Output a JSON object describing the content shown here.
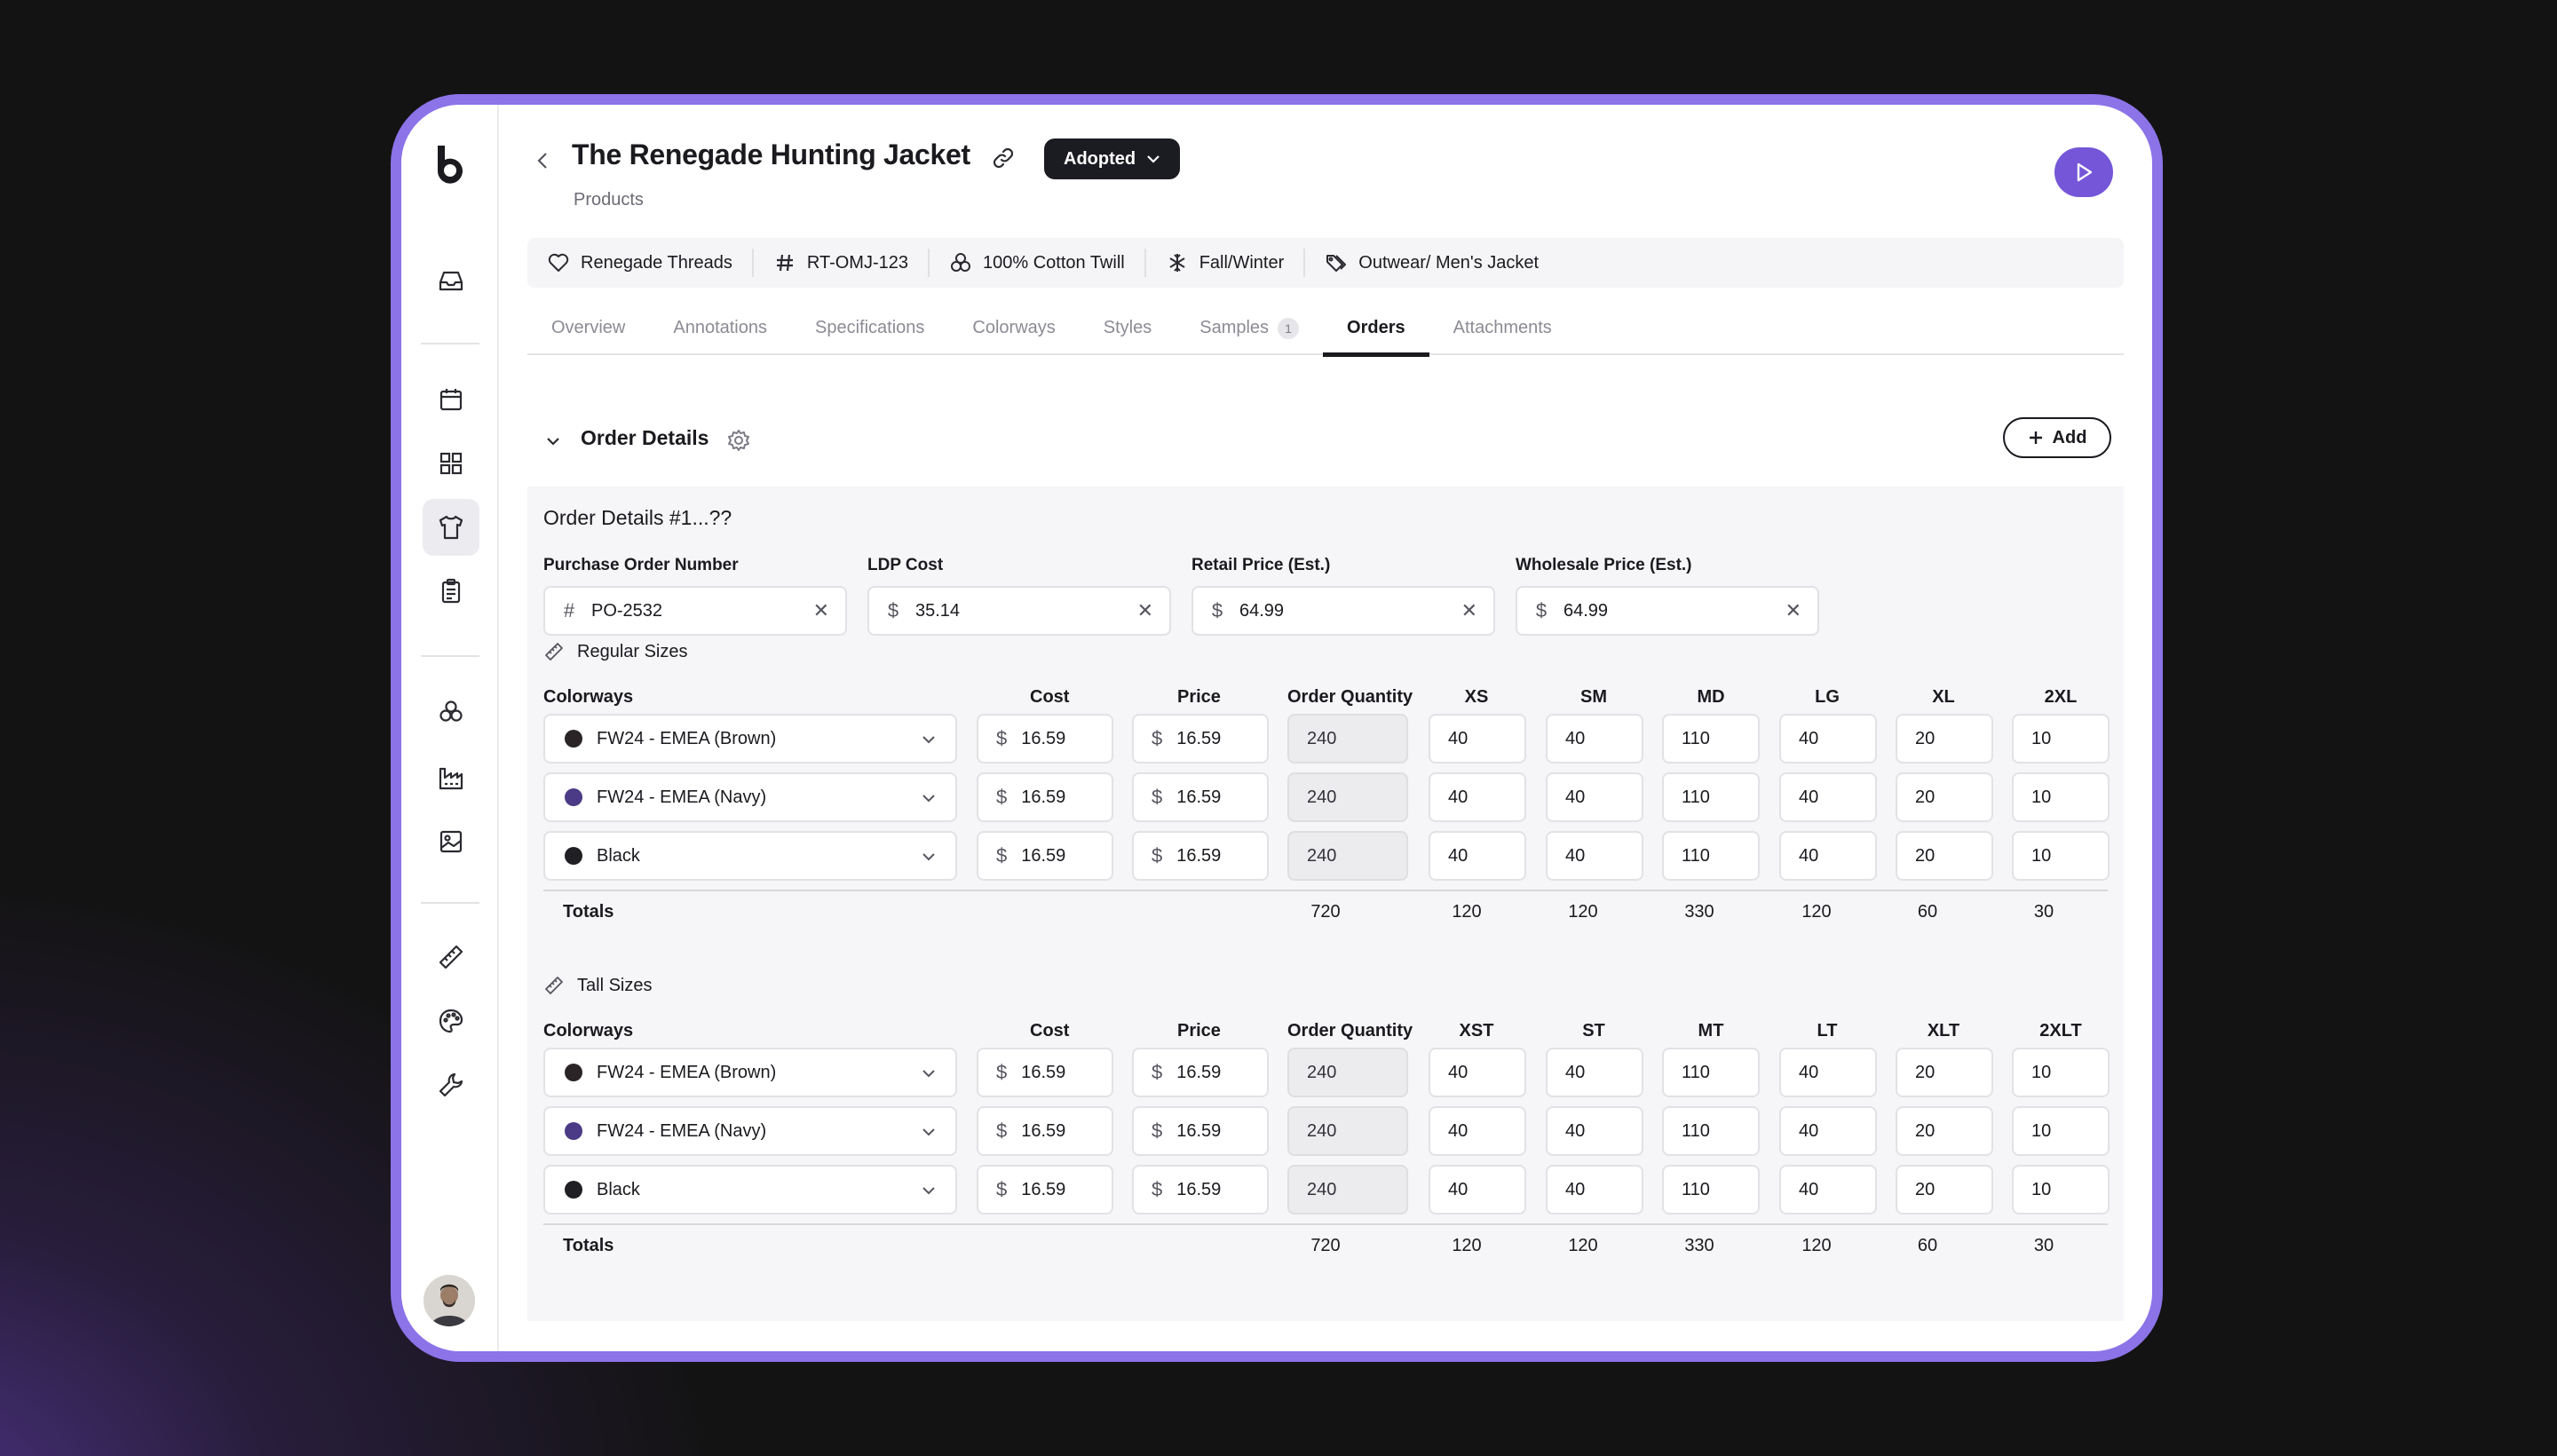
{
  "app": {
    "title": "The Renegade Hunting Jacket",
    "subtitle": "Products",
    "status": "Adopted"
  },
  "colors": {
    "accent": "#7556d8",
    "frame": "#8c73e8",
    "navy": "#4b3b86",
    "brown": "#2a2426",
    "black": "#1f1f24"
  },
  "sidebar": {
    "icons": [
      "inbox-icon",
      "calendar-icon",
      "grid-icon",
      "shirt-icon",
      "clipboard-icon",
      "cubes-icon",
      "factory-icon",
      "image-icon",
      "ruler-icon",
      "palette-icon",
      "wrench-icon"
    ],
    "active": "shirt-icon"
  },
  "chips": [
    {
      "icon": "heart-icon",
      "label": "Renegade Threads"
    },
    {
      "icon": "hash-icon",
      "label": "RT-OMJ-123"
    },
    {
      "icon": "fabric-icon",
      "label": "100% Cotton Twill"
    },
    {
      "icon": "season-icon",
      "label": "Fall/Winter"
    },
    {
      "icon": "tag-icon",
      "label": "Outwear/ Men's Jacket"
    }
  ],
  "tabs": [
    {
      "label": "Overview"
    },
    {
      "label": "Annotations"
    },
    {
      "label": "Specifications"
    },
    {
      "label": "Colorways"
    },
    {
      "label": "Styles"
    },
    {
      "label": "Samples",
      "badge": "1"
    },
    {
      "label": "Orders",
      "active": true
    },
    {
      "label": "Attachments"
    }
  ],
  "section": {
    "title": "Order Details",
    "add_label": "Add"
  },
  "order": {
    "title": "Order Details #1...??",
    "fields": [
      {
        "label": "Purchase Order Number",
        "prefix": "#",
        "value": "PO-2532"
      },
      {
        "label": "LDP Cost",
        "prefix": "$",
        "value": "35.14"
      },
      {
        "label": "Retail Price (Est.)",
        "prefix": "$",
        "value": "64.99"
      },
      {
        "label": "Wholesale Price (Est.)",
        "prefix": "$",
        "value": "64.99"
      }
    ],
    "groups": [
      {
        "label": "Regular Sizes",
        "headers": {
          "colorways": "Colorways",
          "cost": "Cost",
          "price": "Price",
          "qty": "Order Quantity",
          "sizes": [
            "XS",
            "SM",
            "MD",
            "LG",
            "XL",
            "2XL"
          ]
        },
        "rows": [
          {
            "colorway": "FW24 - EMEA (Brown)",
            "swatch": "#2a2426",
            "cost": "16.59",
            "price": "16.59",
            "qty": "240",
            "sizes": [
              "40",
              "40",
              "110",
              "40",
              "20",
              "10"
            ]
          },
          {
            "colorway": "FW24 - EMEA (Navy)",
            "swatch": "#4b3b86",
            "cost": "16.59",
            "price": "16.59",
            "qty": "240",
            "sizes": [
              "40",
              "40",
              "110",
              "40",
              "20",
              "10"
            ]
          },
          {
            "colorway": "Black",
            "swatch": "#1f1f24",
            "cost": "16.59",
            "price": "16.59",
            "qty": "240",
            "sizes": [
              "40",
              "40",
              "110",
              "40",
              "20",
              "10"
            ]
          }
        ],
        "totals": {
          "label": "Totals",
          "qty": "720",
          "sizes": [
            "120",
            "120",
            "330",
            "120",
            "60",
            "30"
          ]
        }
      },
      {
        "label": "Tall Sizes",
        "headers": {
          "colorways": "Colorways",
          "cost": "Cost",
          "price": "Price",
          "qty": "Order Quantity",
          "sizes": [
            "XST",
            "ST",
            "MT",
            "LT",
            "XLT",
            "2XLT"
          ]
        },
        "rows": [
          {
            "colorway": "FW24 - EMEA (Brown)",
            "swatch": "#2a2426",
            "cost": "16.59",
            "price": "16.59",
            "qty": "240",
            "sizes": [
              "40",
              "40",
              "110",
              "40",
              "20",
              "10"
            ]
          },
          {
            "colorway": "FW24 - EMEA (Navy)",
            "swatch": "#4b3b86",
            "cost": "16.59",
            "price": "16.59",
            "qty": "240",
            "sizes": [
              "40",
              "40",
              "110",
              "40",
              "20",
              "10"
            ]
          },
          {
            "colorway": "Black",
            "swatch": "#1f1f24",
            "cost": "16.59",
            "price": "16.59",
            "qty": "240",
            "sizes": [
              "40",
              "40",
              "110",
              "40",
              "20",
              "10"
            ]
          }
        ],
        "totals": {
          "label": "Totals",
          "qty": "720",
          "sizes": [
            "120",
            "120",
            "330",
            "120",
            "60",
            "30"
          ]
        }
      }
    ]
  }
}
